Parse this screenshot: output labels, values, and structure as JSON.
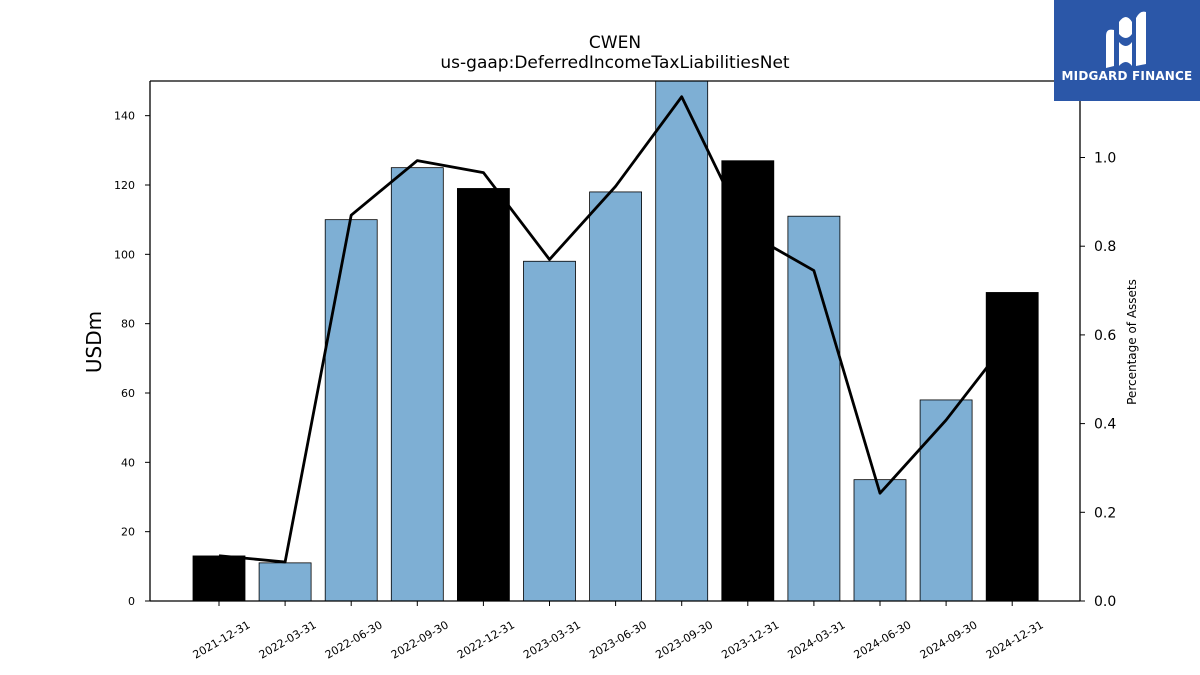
{
  "title": "CWEN",
  "subtitle": "us-gaap:DeferredIncomeTaxLiabilitiesNet",
  "logo": {
    "text": "MIDGARD FINANCE"
  },
  "colors": {
    "bar_default": "#7eafd4",
    "bar_highlight": "#000000",
    "line": "#000000",
    "logo_bg": "#2b57a8"
  },
  "chart_data": {
    "type": "bar",
    "categories": [
      "2021-12-31",
      "2022-03-31",
      "2022-06-30",
      "2022-09-30",
      "2022-12-31",
      "2023-03-31",
      "2023-06-30",
      "2023-09-30",
      "2023-12-31",
      "2024-03-31",
      "2024-06-30",
      "2024-09-30",
      "2024-12-31"
    ],
    "values": [
      13,
      11,
      110,
      125,
      119,
      98,
      118,
      150,
      127,
      111,
      35,
      58,
      89
    ],
    "highlight": [
      true,
      false,
      false,
      false,
      true,
      false,
      false,
      false,
      true,
      false,
      false,
      false,
      true
    ],
    "line_values": [
      0.102,
      0.088,
      0.87,
      0.993,
      0.966,
      0.77,
      0.935,
      1.137,
      0.83,
      0.745,
      0.243,
      0.408,
      0.6
    ],
    "ylabel": "USDm",
    "y2label": "Percentage of Assets",
    "ylim": [
      0,
      150
    ],
    "y2lim": [
      0,
      1.1725
    ],
    "yticks": [
      "0",
      "20",
      "40",
      "60",
      "80",
      "100",
      "120",
      "140"
    ],
    "y2ticks": [
      "0.0",
      "0.2",
      "0.4",
      "0.6",
      "0.8",
      "1.0"
    ]
  }
}
